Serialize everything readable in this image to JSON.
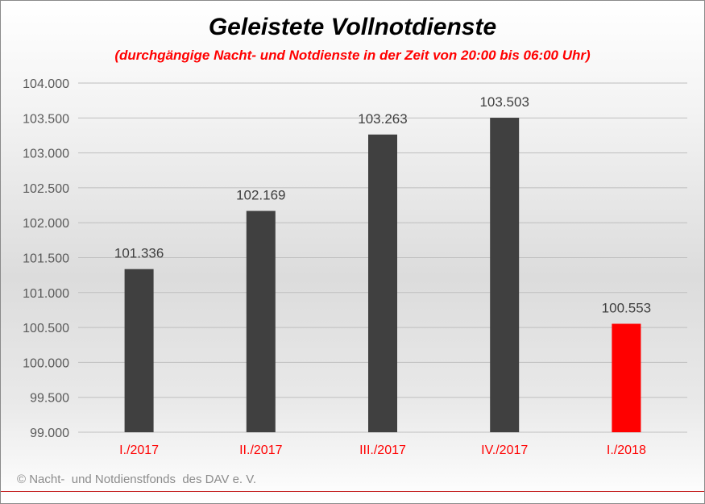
{
  "chart_data": {
    "type": "bar",
    "title": "Geleistete  Vollnotdienste",
    "subtitle": "(durchgängige Nacht- und Notdienste in der Zeit von 20:00 bis 06:00 Uhr)",
    "categories": [
      "I./2017",
      "II./2017",
      "III./2017",
      "IV./2017",
      "I./2018"
    ],
    "values": [
      101336,
      102169,
      103263,
      103503,
      100553
    ],
    "value_labels": [
      "101.336",
      "102.169",
      "103.263",
      "103.503",
      "100.553"
    ],
    "ylim": [
      99000,
      104000
    ],
    "yticks": [
      99000,
      99500,
      100000,
      100500,
      101000,
      101500,
      102000,
      102500,
      103000,
      103500,
      104000
    ],
    "ytick_labels": [
      "99.000",
      "99.500",
      "100.000",
      "100.500",
      "101.000",
      "101.500",
      "102.000",
      "102.500",
      "103.000",
      "103.500",
      "104.000"
    ],
    "grid": true,
    "xlabel": "",
    "ylabel": "",
    "colors": {
      "bar": "#404040",
      "highlight": "#ff0000",
      "category_label": "#ff0000",
      "grid": "#bfbfbf",
      "tick_label": "#595959"
    },
    "highlight_index": 4
  },
  "footer": {
    "credit": "© Nacht-  und Notdienstfonds  des DAV e. V."
  }
}
